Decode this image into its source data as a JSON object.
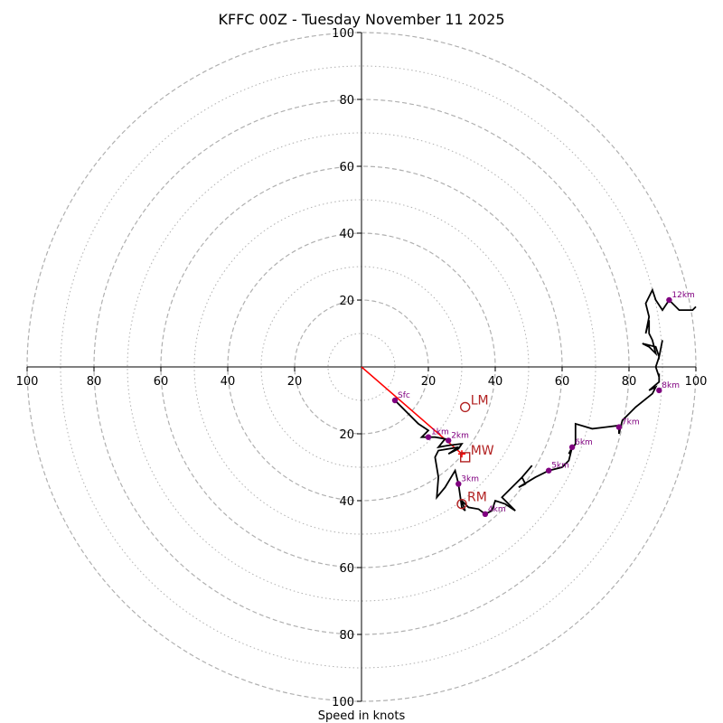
{
  "chart_data": {
    "type": "hodograph",
    "title": "KFFC 00Z - Tuesday November 11 2025",
    "xlabel": "Speed in knots",
    "x_range": [
      -100,
      100
    ],
    "y_range": [
      -100,
      100
    ],
    "rings_major": [
      20,
      40,
      60,
      80,
      100
    ],
    "rings_minor": [
      10,
      30,
      50,
      70,
      90
    ],
    "x_ticks": [
      {
        "value": -100,
        "label": "100"
      },
      {
        "value": -80,
        "label": "80"
      },
      {
        "value": -60,
        "label": "60"
      },
      {
        "value": -40,
        "label": "40"
      },
      {
        "value": -20,
        "label": "20"
      },
      {
        "value": 20,
        "label": "20"
      },
      {
        "value": 40,
        "label": "40"
      },
      {
        "value": 60,
        "label": "60"
      },
      {
        "value": 80,
        "label": "80"
      },
      {
        "value": 100,
        "label": "100"
      }
    ],
    "y_ticks": [
      {
        "value": 100,
        "label": "100"
      },
      {
        "value": 80,
        "label": "80"
      },
      {
        "value": 60,
        "label": "60"
      },
      {
        "value": 40,
        "label": "40"
      },
      {
        "value": 20,
        "label": "20"
      },
      {
        "value": -20,
        "label": "20"
      },
      {
        "value": -40,
        "label": "40"
      },
      {
        "value": -60,
        "label": "60"
      },
      {
        "value": -80,
        "label": "80"
      },
      {
        "value": -100,
        "label": "100"
      }
    ],
    "trace": [
      [
        10,
        -10
      ],
      [
        17,
        -17
      ],
      [
        20,
        -19
      ],
      [
        18,
        -21
      ],
      [
        22,
        -21
      ],
      [
        25,
        -21.5
      ],
      [
        23,
        -24
      ],
      [
        26,
        -23.5
      ],
      [
        30,
        -23
      ],
      [
        29,
        -24.5
      ],
      [
        26,
        -26
      ],
      [
        29,
        -24
      ],
      [
        23,
        -25
      ],
      [
        22,
        -27
      ],
      [
        23,
        -33
      ],
      [
        22.5,
        -39
      ],
      [
        25,
        -36
      ],
      [
        28,
        -31
      ],
      [
        29,
        -35
      ],
      [
        30,
        -42
      ],
      [
        31,
        -43
      ],
      [
        30,
        -40
      ],
      [
        32,
        -42
      ],
      [
        35,
        -42.5
      ],
      [
        37,
        -44
      ],
      [
        39,
        -43
      ],
      [
        40,
        -40
      ],
      [
        43,
        -41
      ],
      [
        46,
        -43
      ],
      [
        42,
        -39
      ],
      [
        48,
        -33
      ],
      [
        51,
        -29.5
      ],
      [
        48,
        -33
      ],
      [
        49,
        -35
      ],
      [
        47,
        -36
      ],
      [
        52,
        -33
      ],
      [
        56,
        -31
      ],
      [
        60,
        -30
      ],
      [
        62,
        -28
      ],
      [
        63,
        -24
      ],
      [
        62,
        -26
      ],
      [
        64,
        -23
      ],
      [
        64,
        -20
      ],
      [
        64,
        -17
      ],
      [
        69,
        -18.5
      ],
      [
        73,
        -18
      ],
      [
        77,
        -17.5
      ],
      [
        77,
        -20
      ],
      [
        78,
        -16
      ],
      [
        82,
        -12
      ],
      [
        87,
        -8
      ],
      [
        88,
        -6
      ],
      [
        86,
        -7
      ],
      [
        89,
        -4.5
      ],
      [
        89,
        -2
      ],
      [
        89,
        -3
      ],
      [
        88,
        0
      ],
      [
        89,
        3
      ],
      [
        90,
        8
      ],
      [
        89,
        3
      ],
      [
        88,
        6
      ],
      [
        84,
        7
      ],
      [
        86,
        6
      ],
      [
        88,
        4
      ],
      [
        87,
        8
      ],
      [
        86,
        10
      ],
      [
        86,
        14
      ],
      [
        85,
        10
      ],
      [
        86,
        15
      ],
      [
        85,
        19
      ],
      [
        87,
        23
      ],
      [
        88,
        20
      ],
      [
        90,
        17
      ],
      [
        92,
        20
      ],
      [
        95,
        17
      ],
      [
        99,
        17
      ],
      [
        100,
        18
      ]
    ],
    "height_markers": [
      {
        "label": "Sfc",
        "u": 10,
        "v": -10
      },
      {
        "label": "1km",
        "u": 20,
        "v": -21
      },
      {
        "label": "2km",
        "u": 26,
        "v": -22
      },
      {
        "label": "3km",
        "u": 29,
        "v": -35
      },
      {
        "label": "4km",
        "u": 37,
        "v": -44
      },
      {
        "label": "5km",
        "u": 56,
        "v": -31
      },
      {
        "label": "6km",
        "u": 63,
        "v": -24
      },
      {
        "label": "7km",
        "u": 77,
        "v": -18
      },
      {
        "label": "8km",
        "u": 89,
        "v": -7
      },
      {
        "label": "12km",
        "u": 92,
        "v": 20
      }
    ],
    "shear_vector": {
      "from": [
        0,
        0
      ],
      "to": [
        30,
        -26
      ]
    },
    "motions": [
      {
        "label": "LM",
        "marker": "circle",
        "u": 31,
        "v": -12
      },
      {
        "label": "MW",
        "marker": "square",
        "u": 31,
        "v": -27
      },
      {
        "label": "RM",
        "marker": "circle",
        "u": 30,
        "v": -41
      }
    ],
    "colors": {
      "trace": "#000000",
      "markers": "#800080",
      "shear": "#ff0000",
      "motion": "#b22222",
      "rings": "#b0b0b0",
      "axes": "#000000"
    }
  }
}
